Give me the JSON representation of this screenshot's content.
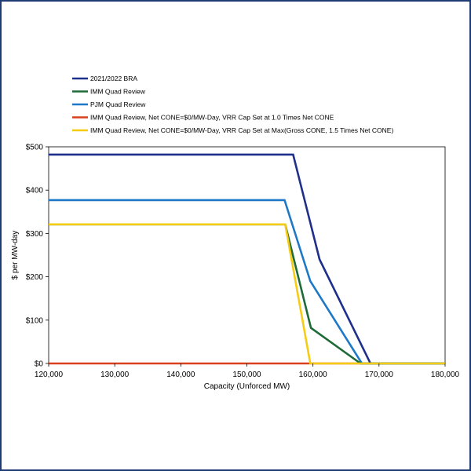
{
  "chart_data": {
    "type": "line",
    "title": "",
    "xlabel": "Capacity (Unforced MW)",
    "ylabel": "$ per MW-day",
    "xlim": [
      120000,
      180000
    ],
    "ylim": [
      0,
      500
    ],
    "x_ticks": [
      120000,
      130000,
      140000,
      150000,
      160000,
      170000,
      180000
    ],
    "x_tick_labels": [
      "120,000",
      "130,000",
      "140,000",
      "150,000",
      "160,000",
      "170,000",
      "180,000"
    ],
    "y_ticks": [
      0,
      100,
      200,
      300,
      400,
      500
    ],
    "y_tick_labels": [
      "$0",
      "$100",
      "$200",
      "$300",
      "$400",
      "$500"
    ],
    "grid": false,
    "legend_position": "top-left, above plot",
    "series": [
      {
        "name": "2021/2022 BRA",
        "color": "#1f2f8c",
        "points": [
          [
            120000,
            482
          ],
          [
            157000,
            482
          ],
          [
            161000,
            240
          ],
          [
            168700,
            0
          ],
          [
            180000,
            0
          ]
        ]
      },
      {
        "name": "IMM Quad Review",
        "color": "#1e6b37",
        "points": [
          [
            120000,
            321
          ],
          [
            155800,
            321
          ],
          [
            159700,
            82
          ],
          [
            167200,
            0
          ],
          [
            180000,
            0
          ]
        ]
      },
      {
        "name": "PJM Quad Review",
        "color": "#1e78c8",
        "points": [
          [
            120000,
            377
          ],
          [
            155700,
            377
          ],
          [
            159600,
            190
          ],
          [
            167400,
            0
          ],
          [
            180000,
            0
          ]
        ]
      },
      {
        "name": "IMM Quad Review, Net CONE=$0/MW-Day, VRR Cap Set at 1.0 Times Net CONE",
        "color": "#d9401e",
        "points": [
          [
            120000,
            0
          ],
          [
            180000,
            0
          ]
        ]
      },
      {
        "name": "IMM Quad Review, Net CONE=$0/MW-Day, VRR Cap Set at Max(Gross CONE, 1.5 Times Net CONE)",
        "color": "#f5cc14",
        "points": [
          [
            120000,
            321
          ],
          [
            155800,
            321
          ],
          [
            159600,
            0
          ],
          [
            180000,
            0
          ]
        ]
      }
    ]
  }
}
